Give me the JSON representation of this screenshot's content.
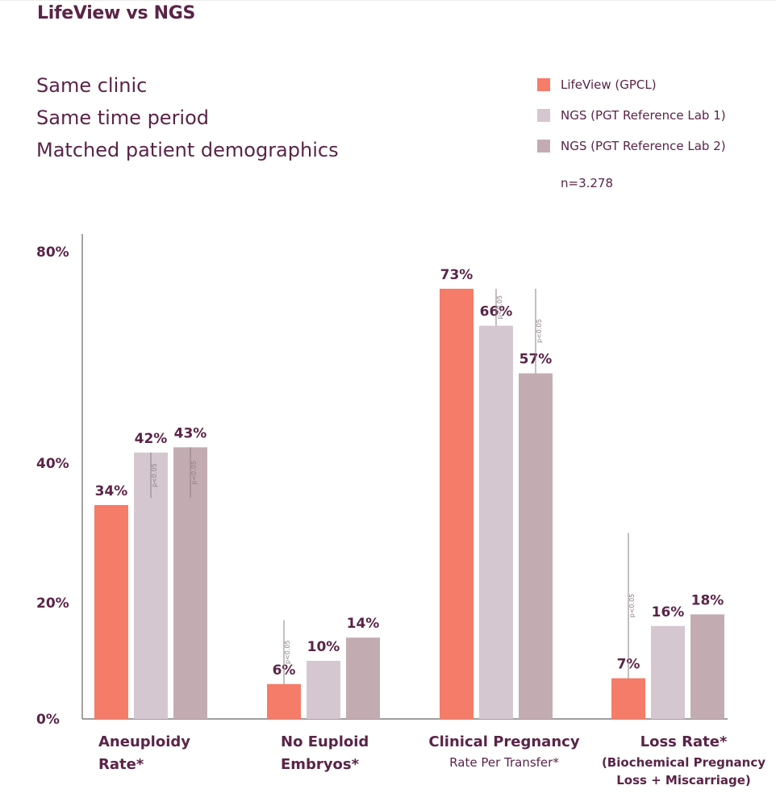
{
  "title": "LifeView vs NGS",
  "subtitle_lines": [
    "Same clinic",
    "Same time period",
    "Matched patient demographics"
  ],
  "legend": [
    {
      "label": "LifeView (GPCL)",
      "color": "#f47c68"
    },
    {
      "label": "NGS (PGT Reference Lab 1)",
      "color": "#d5c7d0"
    },
    {
      "label": "NGS (PGT Reference Lab 2)",
      "color": "#c3acb1"
    }
  ],
  "sample_size": "n=3.278",
  "colors": {
    "accent": "#5a2447",
    "lifeview": "#f47c68",
    "ngs1": "#d5c7d0",
    "ngs2": "#c3acb1",
    "axis": "#666666",
    "pline": "#8a7f86"
  },
  "chart_data": {
    "type": "bar",
    "categories": [
      "Aneuploidy Rate*",
      "No Euploid Embryos*",
      "Clinical Pregnancy Rate Per Transfer*",
      "Loss Rate* (Biochemical Pregnancy Loss + Miscarriage)"
    ],
    "category_labels": [
      {
        "line1": "Aneuploidy",
        "line2": "Rate*",
        "line3": "",
        "style": "bold"
      },
      {
        "line1": "No Euploid",
        "line2": "Embryos*",
        "line3": "",
        "style": "bold"
      },
      {
        "line1": "Clinical Pregnancy",
        "line2": "Rate Per Transfer*",
        "line3": "",
        "style": "small"
      },
      {
        "line1": "Loss Rate*",
        "line2": "(Biochemical Pregnancy",
        "line3": "Loss + Miscarriage)",
        "style": "boldsmall"
      }
    ],
    "series": [
      {
        "name": "LifeView (GPCL)",
        "values": [
          34,
          6,
          73,
          7
        ],
        "labels": [
          "34%",
          "6%",
          "73%",
          "7%"
        ]
      },
      {
        "name": "NGS (PGT Reference Lab 1)",
        "values": [
          42,
          10,
          66,
          16
        ],
        "labels": [
          "42%",
          "10%",
          "66%",
          "16%"
        ]
      },
      {
        "name": "NGS (PGT Reference Lab 2)",
        "values": [
          43,
          14,
          57,
          18
        ],
        "labels": [
          "43%",
          "14%",
          "57%",
          "18%"
        ]
      }
    ],
    "y_ticks": [
      {
        "value": 0,
        "label": "0%"
      },
      {
        "value": 20,
        "label": "20%"
      },
      {
        "value": 40,
        "label": "40%"
      },
      {
        "value": 80,
        "label": "80%"
      }
    ],
    "annotations": [
      {
        "text": "p<0.05",
        "category": 0,
        "series": 1,
        "from": 42,
        "to": 35
      },
      {
        "text": "p<0.05",
        "category": 0,
        "series": 2,
        "from": 43,
        "to": 35
      },
      {
        "text": "p<0.05",
        "category": 1,
        "series": 0,
        "from": 17,
        "to": 6
      },
      {
        "text": "p<0.05",
        "category": 2,
        "series": 1,
        "from": 73,
        "to": 66
      },
      {
        "text": "p<0.05",
        "category": 2,
        "series": 2,
        "from": 73,
        "to": 57
      },
      {
        "text": "p<0.05",
        "category": 3,
        "series": 0,
        "from": 30,
        "to": 7
      }
    ],
    "ylim": [
      0,
      80
    ],
    "grid": false,
    "legend_position": "top-right"
  }
}
